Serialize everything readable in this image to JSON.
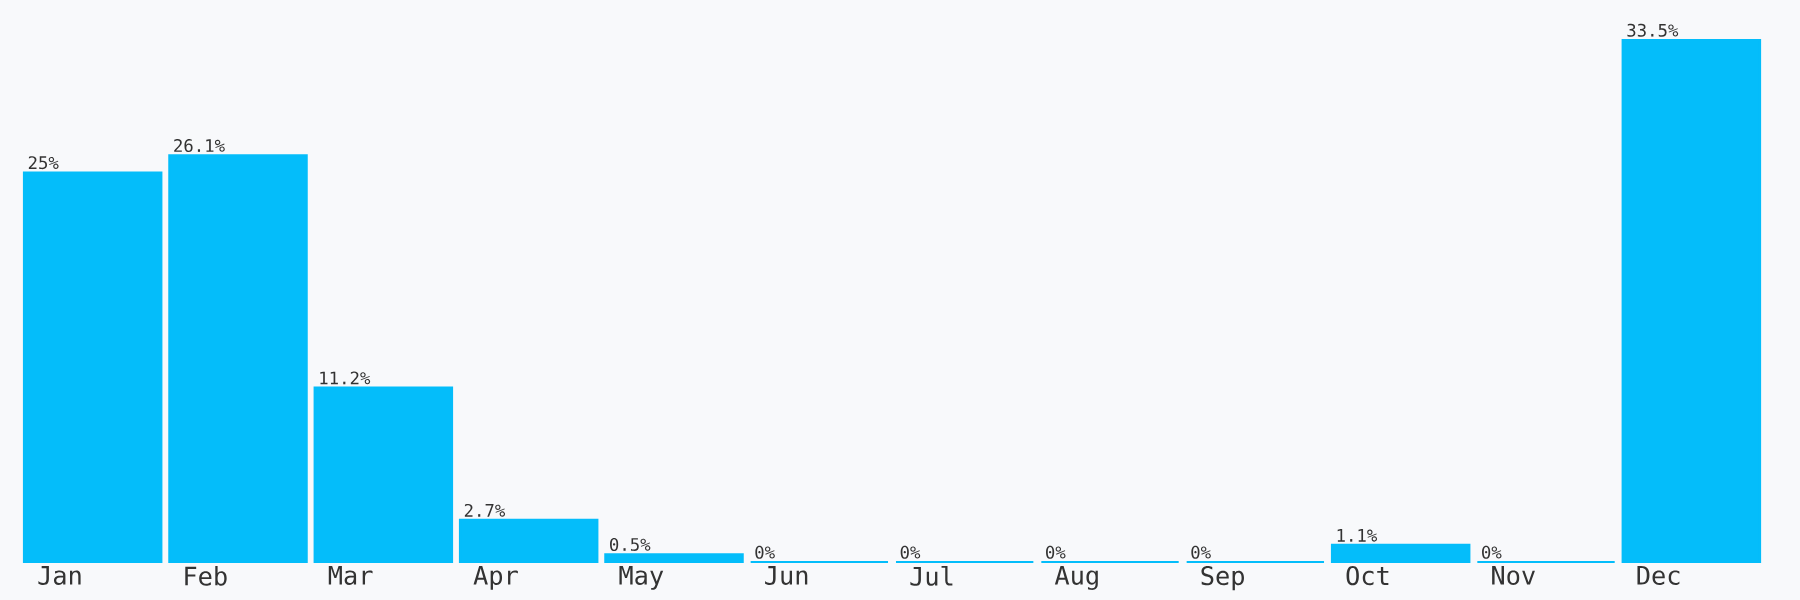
{
  "chart_data": {
    "type": "bar",
    "categories": [
      "Jan",
      "Feb",
      "Mar",
      "Apr",
      "May",
      "Jun",
      "Jul",
      "Aug",
      "Sep",
      "Oct",
      "Nov",
      "Dec"
    ],
    "values": [
      25,
      26.1,
      11.2,
      2.7,
      0.5,
      0,
      0,
      0,
      0,
      1.1,
      0,
      33.5
    ],
    "value_labels": [
      "25%",
      "26.1%",
      "11.2%",
      "2.7%",
      "0.5%",
      "0%",
      "0%",
      "0%",
      "0%",
      "1.1%",
      "0%",
      "33.5%"
    ],
    "color": "#04bdfa"
  }
}
